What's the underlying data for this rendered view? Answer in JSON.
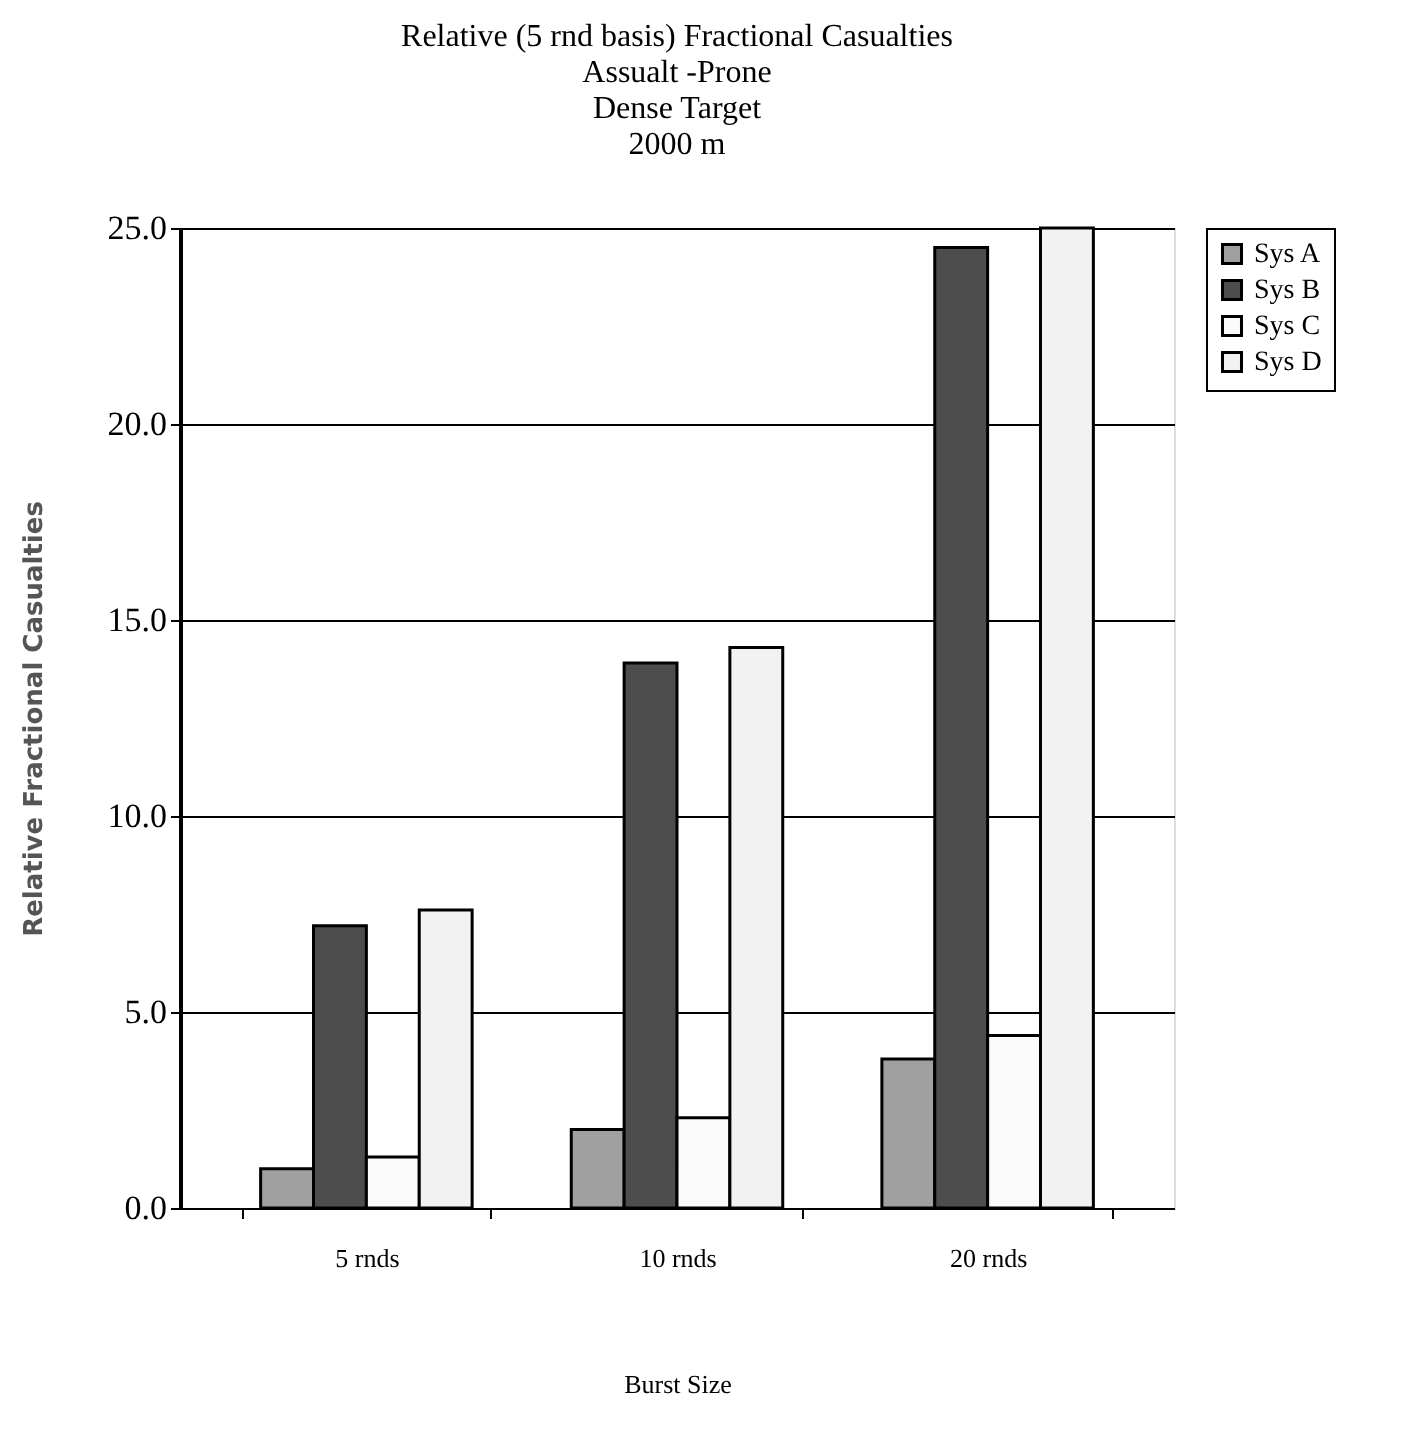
{
  "chart_data": {
    "type": "bar",
    "title": [
      "Relative (5 rnd basis) Fractional Casualties",
      "Assualt -Prone",
      "Dense Target",
      "2000 m"
    ],
    "xlabel": "Burst Size",
    "ylabel": "Relative Fractional Casualties",
    "categories": [
      "5 rnds",
      "10 rnds",
      "20 rnds"
    ],
    "series": [
      {
        "name": "Sys A",
        "color": "#a0a0a0",
        "values": [
          1.0,
          2.0,
          3.8
        ]
      },
      {
        "name": "Sys B",
        "color": "#4d4d4d",
        "values": [
          7.2,
          13.9,
          24.5
        ]
      },
      {
        "name": "Sys C",
        "color": "#fafafa",
        "values": [
          1.3,
          2.3,
          4.4
        ]
      },
      {
        "name": "Sys D",
        "color": "#f2f2f2",
        "values": [
          7.6,
          14.3,
          25.0
        ]
      }
    ],
    "ylim": [
      0,
      25
    ],
    "yticks": [
      {
        "value": 0,
        "label": "0.0"
      },
      {
        "value": 5,
        "label": "5.0"
      },
      {
        "value": 10,
        "label": "10.0"
      },
      {
        "value": 15,
        "label": "15.0"
      },
      {
        "value": 20,
        "label": "20.0"
      },
      {
        "value": 25,
        "label": "25.0"
      }
    ],
    "grid": "y",
    "legend": "right"
  }
}
